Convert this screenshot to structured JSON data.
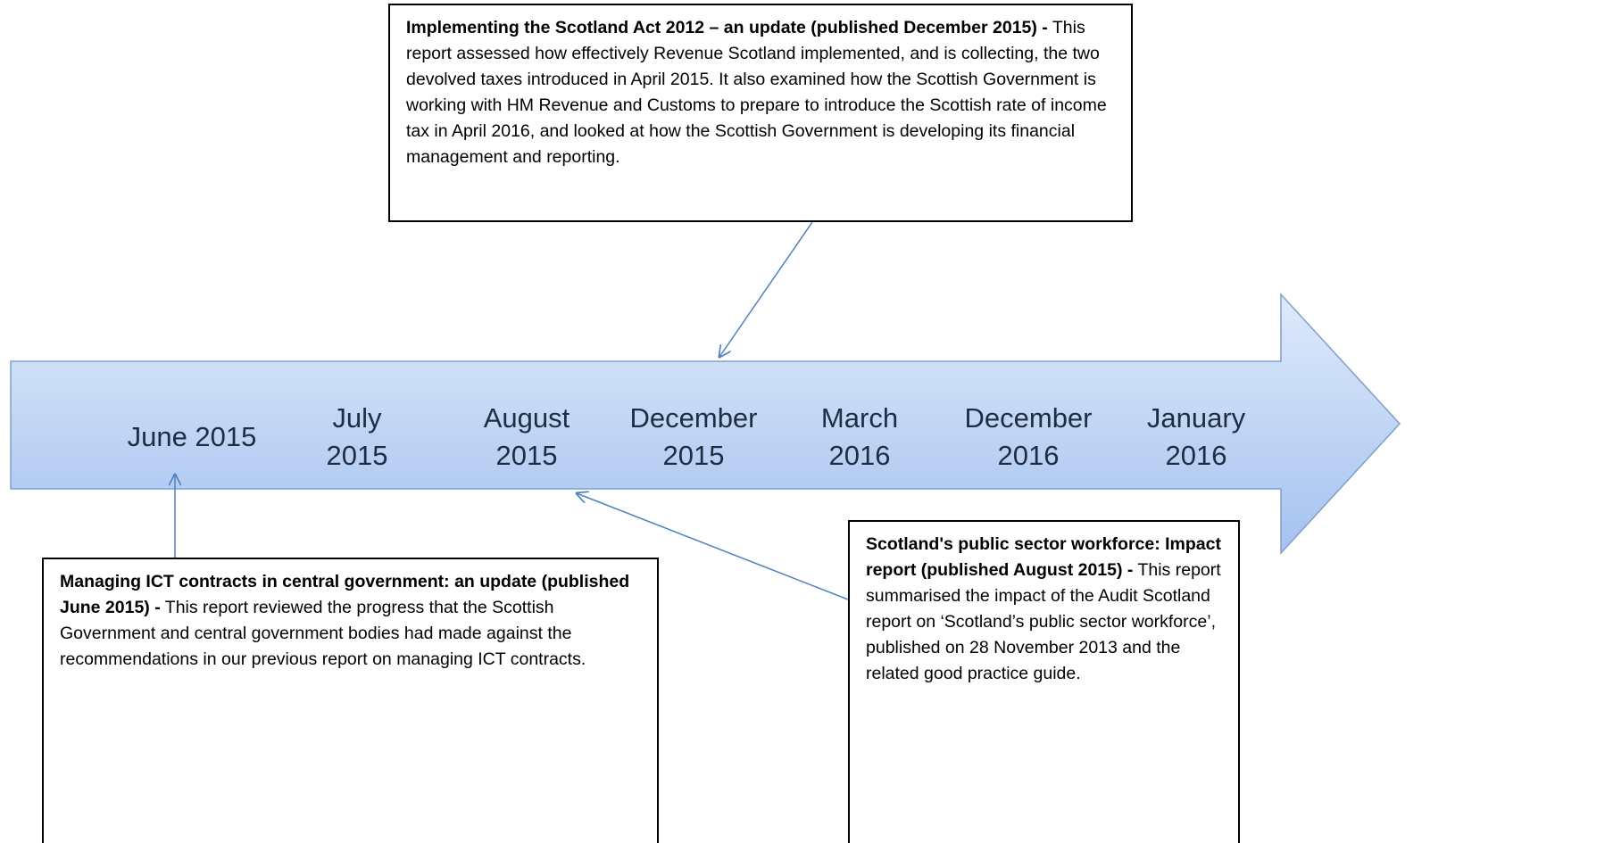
{
  "timeline": {
    "dates": [
      "June 2015",
      "July 2015",
      "August 2015",
      "December 2015",
      "March 2016",
      "December 2016",
      "January 2016"
    ]
  },
  "callouts": [
    {
      "title": "Implementing the Scotland Act 2012 – an update (published December 2015) -",
      "body": "This report assessed how effectively Revenue Scotland implemented, and is collecting, the two devolved taxes introduced in April 2015.  It also examined how the Scottish Government is working with HM Revenue and Customs to prepare to introduce the Scottish rate of income tax in April 2016, and looked at how the Scottish Government is developing its financial management and reporting."
    },
    {
      "title": "Managing ICT contracts in central government: an update (published June 2015) -",
      "body": "This report reviewed the progress that the Scottish Government and central government bodies had made against the recommendations in our previous report on managing ICT contracts."
    },
    {
      "title": "Scotland's public sector workforce: Impact report (published August 2015) -",
      "body": "This report summarised the impact of the Audit Scotland report on ‘Scotland’s public sector workforce’, published on 28 November 2013 and the related good practice guide."
    }
  ]
}
